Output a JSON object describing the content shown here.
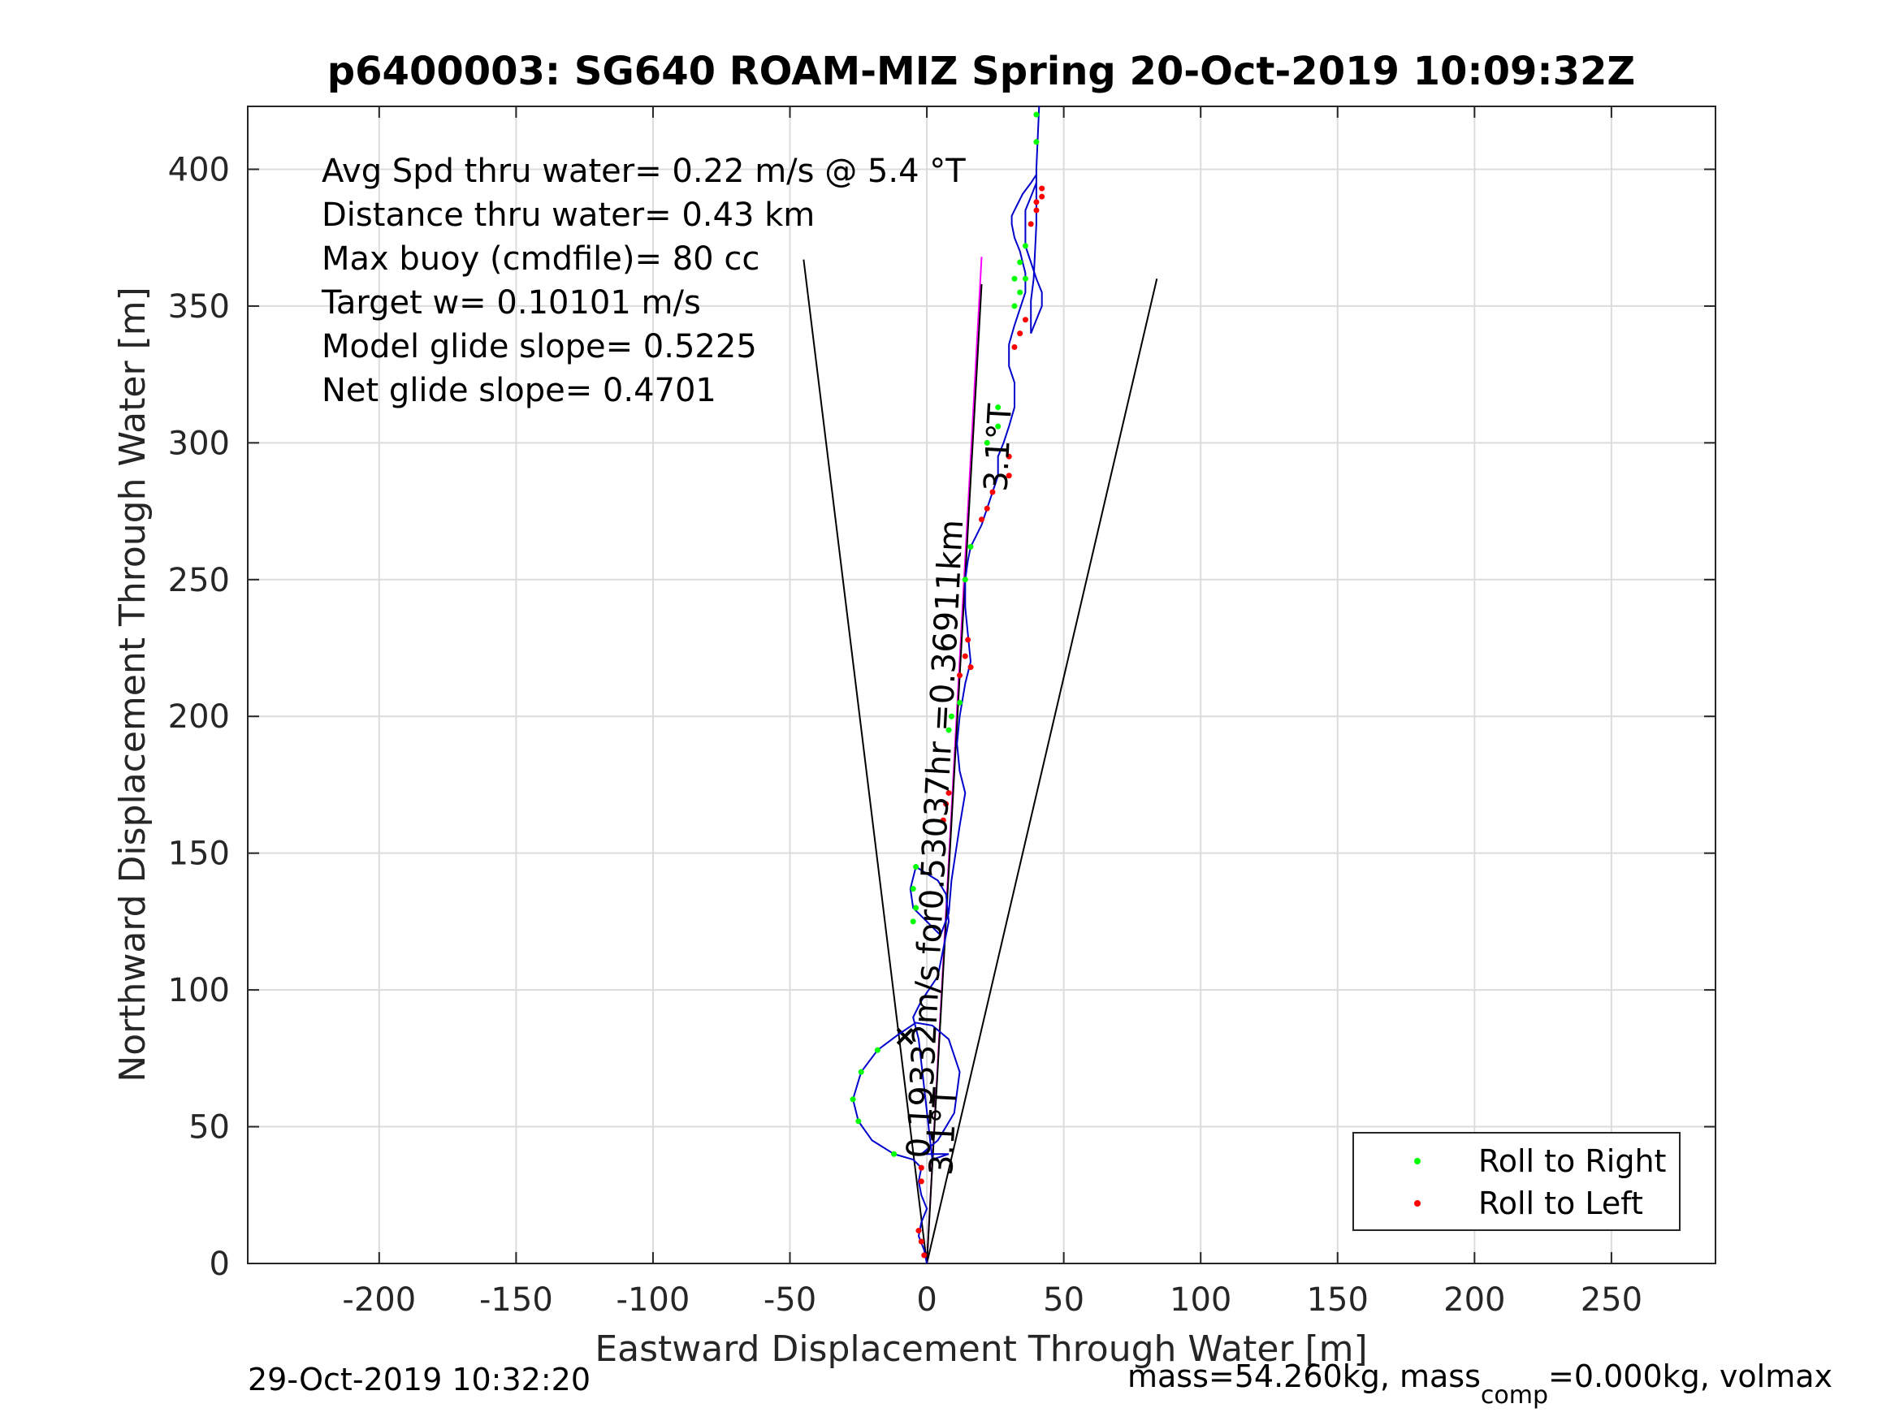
{
  "chart_data": {
    "type": "line",
    "title": "p6400003: SG640 ROAM-MIZ Spring 20-Oct-2019 10:09:32Z",
    "xlabel": "Eastward Displacement Through Water [m]",
    "ylabel": "Northward Displacement Through Water [m]",
    "xlim": [
      -248,
      288
    ],
    "ylim": [
      0,
      423
    ],
    "xticks": [
      -200,
      -150,
      -100,
      -50,
      0,
      50,
      100,
      150,
      200,
      250
    ],
    "yticks": [
      0,
      50,
      100,
      150,
      200,
      250,
      300,
      350,
      400
    ],
    "grid": true,
    "legend_position": "bottom-right",
    "info_lines": [
      "Avg Spd thru water=  0.22 m/s @   5.4 °T",
      "Distance thru water=  0.43 km",
      "Max buoy (cmdfile)= 80 cc",
      "Target w= 0.10101 m/s",
      "Model glide slope= 0.5225",
      "Net glide slope= 0.4701"
    ],
    "rotated_annotations": [
      {
        "text": "0.19332m/s for0.53037hr =0.36911km",
        "at": [
          7,
          155
        ]
      },
      {
        "text": "3.1°T",
        "at": [
          30,
          298
        ]
      },
      {
        "text": "3.1°T",
        "at": [
          10,
          48
        ]
      }
    ],
    "marker_point": [
      -8,
      83
    ],
    "cone_lines": [
      {
        "from": [
          0,
          0
        ],
        "to": [
          -45,
          367
        ]
      },
      {
        "from": [
          0,
          0
        ],
        "to": [
          84,
          360
        ]
      }
    ],
    "heading_lines": [
      {
        "color": "#ff00ff",
        "from": [
          0,
          0
        ],
        "to": [
          20,
          368
        ]
      },
      {
        "color": "#000000",
        "from": [
          0,
          0
        ],
        "to": [
          20,
          358
        ]
      }
    ],
    "track": {
      "name": "track",
      "color": "#0000cc",
      "x": [
        0,
        -1,
        -3,
        -2,
        0,
        -2,
        -3,
        -2,
        -5,
        -12,
        -20,
        -25,
        -27,
        -24,
        -18,
        -10,
        -4,
        2,
        8,
        12,
        10,
        4,
        -2,
        8,
        2,
        -3,
        -5,
        -2,
        4,
        6,
        8,
        7,
        4,
        -4,
        -6,
        -5,
        0,
        5,
        8,
        9,
        12,
        14,
        12,
        11,
        12,
        14,
        16,
        15,
        14,
        14,
        15,
        16,
        18,
        20,
        22,
        24,
        26,
        26,
        28,
        30,
        32,
        32,
        30,
        30,
        32,
        34,
        36,
        36,
        34,
        32,
        31,
        31,
        33,
        35,
        38,
        40,
        40,
        38,
        36,
        36,
        36,
        38,
        40,
        42,
        42,
        40,
        38,
        38,
        38,
        39,
        40,
        40,
        41
      ],
      "y": [
        0,
        5,
        10,
        15,
        20,
        25,
        30,
        35,
        38,
        40,
        45,
        52,
        60,
        70,
        78,
        84,
        88,
        87,
        82,
        70,
        55,
        45,
        40,
        40,
        38,
        82,
        90,
        96,
        105,
        115,
        125,
        135,
        140,
        145,
        137,
        130,
        125,
        120,
        128,
        140,
        160,
        172,
        180,
        190,
        200,
        212,
        220,
        230,
        240,
        250,
        257,
        262,
        266,
        270,
        276,
        282,
        288,
        295,
        300,
        306,
        313,
        322,
        328,
        336,
        343,
        349,
        355,
        362,
        370,
        375,
        380,
        383,
        387,
        391,
        395,
        398,
        395,
        390,
        385,
        378,
        372,
        366,
        360,
        355,
        350,
        345,
        340,
        345,
        352,
        360,
        380,
        400,
        423
      ]
    },
    "series": [
      {
        "name": "Roll to Right",
        "color": "#00ff00",
        "x": [
          -25,
          -27,
          -24,
          -18,
          -12,
          -5,
          -4,
          -5,
          -4,
          8,
          9,
          12,
          14,
          16,
          22,
          26,
          26,
          32,
          34,
          36,
          36,
          34,
          32,
          40,
          40
        ],
        "y": [
          52,
          60,
          70,
          78,
          40,
          125,
          130,
          137,
          145,
          195,
          200,
          205,
          250,
          262,
          300,
          306,
          313,
          360,
          366,
          372,
          360,
          355,
          350,
          410,
          420
        ]
      },
      {
        "name": "Roll to Left",
        "color": "#ff0000",
        "x": [
          -1,
          -2,
          -3,
          -2,
          -2,
          6,
          7,
          8,
          12,
          14,
          15,
          16,
          20,
          22,
          24,
          30,
          30,
          32,
          34,
          36,
          38,
          40,
          42,
          42,
          40
        ],
        "y": [
          3,
          8,
          12,
          30,
          35,
          162,
          168,
          172,
          215,
          222,
          228,
          218,
          272,
          276,
          282,
          288,
          295,
          335,
          340,
          345,
          380,
          385,
          390,
          393,
          388
        ]
      }
    ]
  },
  "footer": {
    "timestamp": "29-Oct-2019 10:32:20",
    "mass_prefix": "mass=54.260kg, mass",
    "mass_sub": "comp",
    "mass_suffix": "=0.000kg, volmax"
  }
}
